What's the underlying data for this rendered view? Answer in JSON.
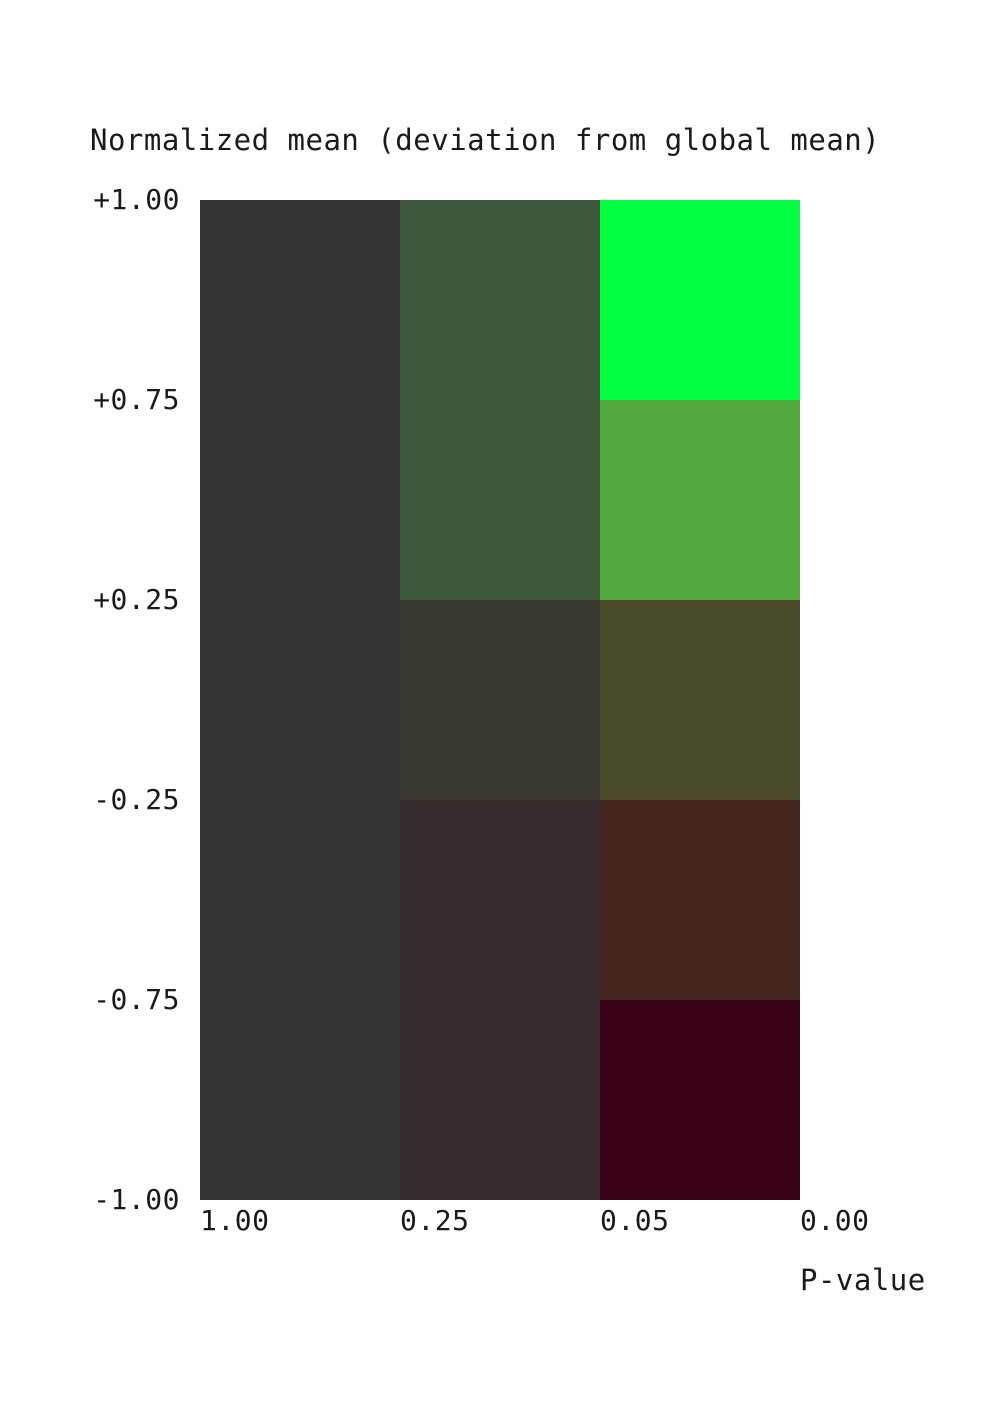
{
  "chart_data": {
    "type": "heatmap",
    "title": "Normalized mean (deviation from global mean)",
    "xlabel": "P-value",
    "ylabel": "",
    "x_tick_labels": [
      "1.00",
      "0.25",
      "0.05",
      "0.00"
    ],
    "y_tick_labels": [
      "+1.00",
      "+0.75",
      "+0.25",
      "-0.25",
      "-0.75",
      "-1.00"
    ],
    "x_bins": [
      {
        "from": "1.00",
        "to": "0.25"
      },
      {
        "from": "0.25",
        "to": "0.05"
      },
      {
        "from": "0.05",
        "to": "0.00"
      }
    ],
    "y_bins": [
      {
        "from": "+1.00",
        "to": "+0.75"
      },
      {
        "from": "+0.75",
        "to": "+0.25"
      },
      {
        "from": "+0.25",
        "to": "-0.25"
      },
      {
        "from": "-0.25",
        "to": "-0.75"
      },
      {
        "from": "-0.75",
        "to": "-1.00"
      }
    ],
    "cell_colors": [
      [
        "#333333",
        "#3f593d",
        "#00ff40"
      ],
      [
        "#333333",
        "#3f593d",
        "#52a83d"
      ],
      [
        "#333333",
        "#383830",
        "#4b4a2a"
      ],
      [
        "#333333",
        "#372c2d",
        "#432520"
      ],
      [
        "#333333",
        "#372c2d",
        "#380018"
      ]
    ],
    "grid": false,
    "legend": "none"
  }
}
